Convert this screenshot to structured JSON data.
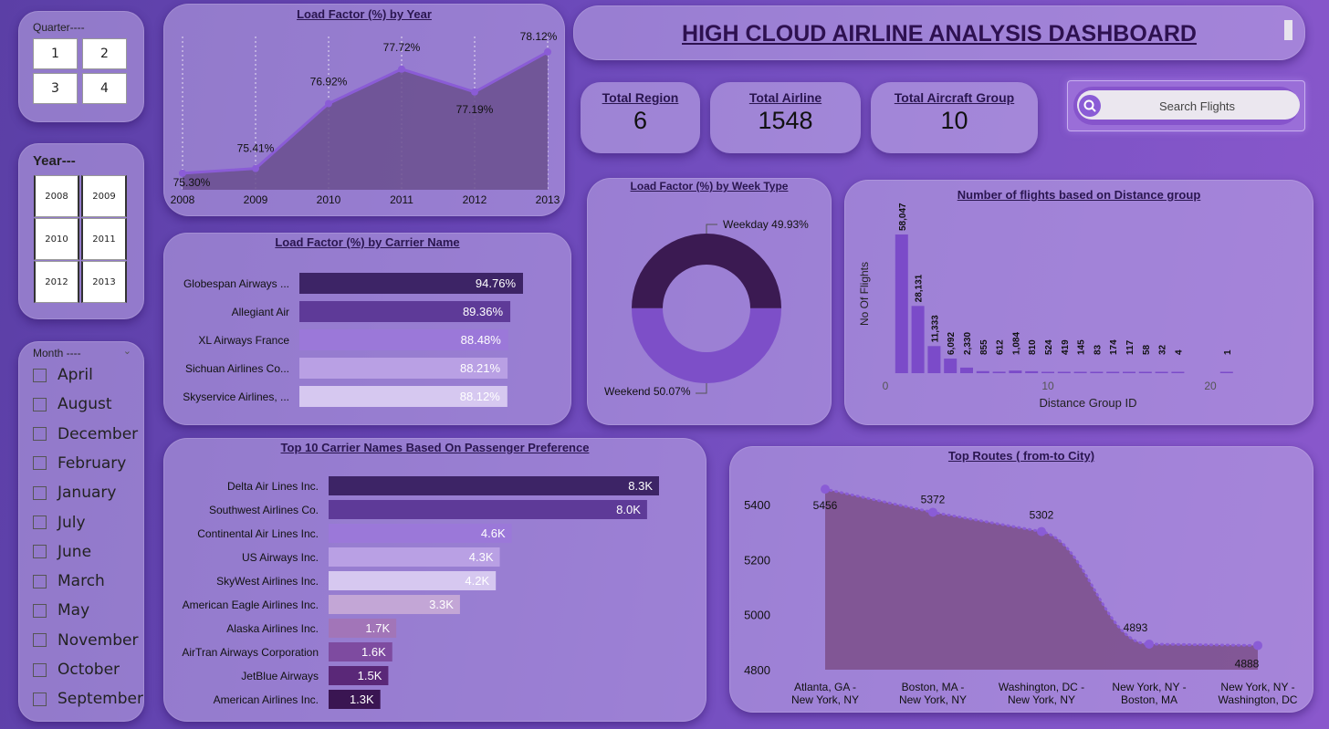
{
  "filters": {
    "quarter": {
      "title": "Quarter----",
      "items": [
        "1",
        "2",
        "3",
        "4"
      ]
    },
    "year": {
      "title": "Year---",
      "items": [
        "2008",
        "2009",
        "2010",
        "2011",
        "2012",
        "2013"
      ]
    },
    "month": {
      "title": "Month ----",
      "items": [
        "April",
        "August",
        "December",
        "February",
        "January",
        "July",
        "June",
        "March",
        "May",
        "November",
        "October",
        "September"
      ]
    }
  },
  "header": {
    "title": "HIGH CLOUD AIRLINE ANALYSIS DASHBOARD"
  },
  "kpis": [
    {
      "label": "Total Region",
      "value": "6"
    },
    {
      "label": "Total Airline",
      "value": "1548"
    },
    {
      "label": "Total Aircraft Group",
      "value": "10"
    }
  ],
  "search": {
    "placeholder": "Search Flights"
  },
  "icons": {
    "search": "search-icon",
    "month_dropdown": "chevron-down-icon"
  },
  "colors": {
    "accent": "#8a5cd6",
    "dark": "#3d2466",
    "area": "#6a4f8e"
  },
  "chart_data": [
    {
      "id": "lf_year",
      "type": "area",
      "title": "Load Factor (%) by Year",
      "x": [
        "2008",
        "2009",
        "2010",
        "2011",
        "2012",
        "2013"
      ],
      "values": [
        75.3,
        75.41,
        76.92,
        77.72,
        77.19,
        78.12
      ],
      "labels": [
        "75.30%",
        "75.41%",
        "76.92%",
        "77.72%",
        "77.19%",
        "78.12%"
      ]
    },
    {
      "id": "lf_carrier",
      "type": "bar",
      "orientation": "horizontal",
      "title": "Load Factor (%) by Carrier Name",
      "categories": [
        "Globespan Airways ...",
        "Allegiant Air",
        "XL Airways France",
        "Sichuan Airlines Co...",
        "Skyservice Airlines, ..."
      ],
      "values": [
        94.76,
        89.36,
        88.48,
        88.21,
        88.12
      ],
      "labels": [
        "94.76%",
        "89.36%",
        "88.48%",
        "88.21%",
        "88.12%"
      ],
      "colors": [
        "#3d2466",
        "#5e3a98",
        "#9b78d9",
        "#b9a0e4",
        "#d6c8f0"
      ]
    },
    {
      "id": "lf_weektype",
      "type": "pie",
      "donut": true,
      "title": "Load Factor (%) by Week Type",
      "categories": [
        "Weekday",
        "Weekend"
      ],
      "values": [
        49.93,
        50.07
      ],
      "labels": [
        "Weekday 49.93%",
        "Weekend 50.07%"
      ],
      "colors": [
        "#3b1a52",
        "#7d4fc8"
      ]
    },
    {
      "id": "distance",
      "type": "bar",
      "title": "Number of flights based on Distance group",
      "xlabel": "Distance Group ID",
      "ylabel": "No Of Flights",
      "x": [
        1,
        2,
        3,
        4,
        5,
        6,
        7,
        8,
        9,
        10,
        11,
        12,
        13,
        14,
        15,
        16,
        17,
        18,
        21
      ],
      "values": [
        58047,
        28131,
        11333,
        6092,
        2330,
        855,
        612,
        1084,
        810,
        524,
        419,
        145,
        83,
        174,
        117,
        58,
        32,
        4,
        1
      ],
      "labels": [
        "58,047",
        "28,131",
        "11,333",
        "6,092",
        "2,330",
        "855",
        "612",
        "1,084",
        "810",
        "524",
        "419",
        "145",
        "83",
        "174",
        "117",
        "58",
        "32",
        "4",
        "1"
      ],
      "xticks": [
        "0",
        "10",
        "20"
      ],
      "xlim": [
        0,
        22
      ]
    },
    {
      "id": "top_carriers",
      "type": "bar",
      "orientation": "horizontal",
      "title": "Top 10 Carrier Names Based On Passenger Preference",
      "categories": [
        "Delta Air Lines Inc.",
        "Southwest Airlines Co.",
        "Continental Air Lines Inc.",
        "US Airways Inc.",
        "SkyWest Airlines Inc.",
        "American Eagle Airlines Inc.",
        "Alaska Airlines Inc.",
        "AirTran Airways Corporation",
        "JetBlue Airways",
        "American Airlines Inc."
      ],
      "values": [
        8.3,
        8.0,
        4.6,
        4.3,
        4.2,
        3.3,
        1.7,
        1.6,
        1.5,
        1.3
      ],
      "labels": [
        "8.3K",
        "8.0K",
        "4.6K",
        "4.3K",
        "4.2K",
        "3.3K",
        "1.7K",
        "1.6K",
        "1.5K",
        "1.3K"
      ],
      "colors": [
        "#3d2466",
        "#5e3a98",
        "#9b78d9",
        "#b9a0e4",
        "#d6c8f0",
        "#c3a6d6",
        "#a275b8",
        "#7e4ba0",
        "#5a2878",
        "#3a1552"
      ]
    },
    {
      "id": "top_routes",
      "type": "area",
      "title": "Top Routes ( from-to City)",
      "categories": [
        "Atlanta, GA - New York, NY",
        "Boston, MA - New York, NY",
        "Washington, DC - New York, NY",
        "New York, NY - Boston, MA",
        "New York, NY - Washington, DC"
      ],
      "category_lines": [
        [
          "Atlanta, GA -",
          "New York, NY"
        ],
        [
          "Boston, MA -",
          "New York, NY"
        ],
        [
          "Washington, DC -",
          "New York, NY"
        ],
        [
          "New York, NY -",
          "Boston, MA"
        ],
        [
          "New York, NY -",
          "Washington, DC"
        ]
      ],
      "values": [
        5456,
        5372,
        5302,
        4893,
        4888
      ],
      "labels": [
        "5456",
        "5372",
        "5302",
        "4893",
        "4888"
      ],
      "yticks": [
        "5400",
        "5200",
        "5000",
        "4800"
      ],
      "ylim": [
        4800,
        5450
      ]
    }
  ]
}
